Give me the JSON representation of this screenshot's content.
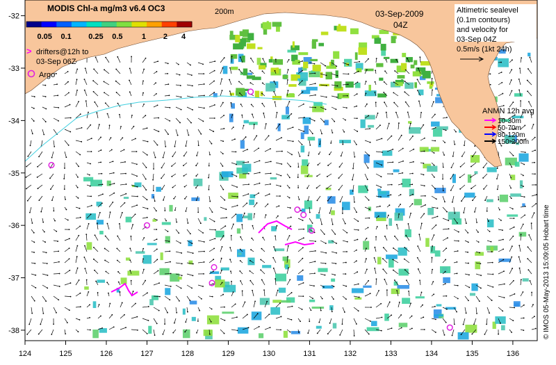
{
  "colorbar": {
    "title": "MODIS Chl-a mg/m3 v6.4 OC3",
    "ticks": [
      "0.05",
      "0.1",
      "0.25",
      "0.5",
      "1",
      "2",
      "4"
    ],
    "colors": [
      "#00008b",
      "#0000ff",
      "#0060ff",
      "#00b4ff",
      "#00e0c0",
      "#40d080",
      "#80e040",
      "#e0e000",
      "#ffa000",
      "#ff4000",
      "#a00000"
    ]
  },
  "legend_drifters": {
    "symbol": ">",
    "line1": "drifters@12h to",
    "line2": "03-Sep 06Z"
  },
  "legend_argo": {
    "label": "Argo"
  },
  "isobath_label": "200m",
  "date": {
    "date": "03-Sep-2009",
    "time": "04Z"
  },
  "altimetry_note": {
    "lines": [
      "Altimetric sealevel",
      "(0.1m contours)",
      "and velocity for",
      "03-Sep 04Z",
      "0.5m/s (1kt 24h)"
    ]
  },
  "anmn": {
    "title": "ANMN 12h avg",
    "items": [
      {
        "label": "10-30m",
        "color": "#ff00ff"
      },
      {
        "label": "50-70m",
        "color": "#ff0000"
      },
      {
        "label": "80-120m",
        "color": "#0000ff"
      },
      {
        "label": "150-200m",
        "color": "#000000"
      }
    ]
  },
  "credit": "© IMOS 05-May-2013 15:09:05 Hobart time",
  "axes": {
    "lon_ticks": [
      "124",
      "125",
      "126",
      "127",
      "128",
      "129",
      "130",
      "131",
      "132",
      "133",
      "134",
      "135",
      "136"
    ],
    "lat_ticks": [
      "-32",
      "-33",
      "-34",
      "-35",
      "-36",
      "-37",
      "-38"
    ],
    "lon_range": [
      124,
      136.6
    ],
    "lat_range": [
      -31.7,
      -38.2
    ]
  },
  "colors": {
    "land": "#f8c69c",
    "drifter": "#ff00ff",
    "argo": "#e020e0",
    "isobath": "#40d0e0"
  },
  "argo_floats": [
    {
      "lon": 129.55,
      "lat": -33.45
    },
    {
      "lon": 124.65,
      "lat": -34.85
    },
    {
      "lon": 127.0,
      "lat": -36.0
    },
    {
      "lon": 128.65,
      "lat": -36.8
    },
    {
      "lon": 128.6,
      "lat": -37.1
    },
    {
      "lon": 130.7,
      "lat": -35.7
    },
    {
      "lon": 130.85,
      "lat": -35.8
    },
    {
      "lon": 131.05,
      "lat": -36.1
    },
    {
      "lon": 134.45,
      "lat": -37.95
    }
  ]
}
